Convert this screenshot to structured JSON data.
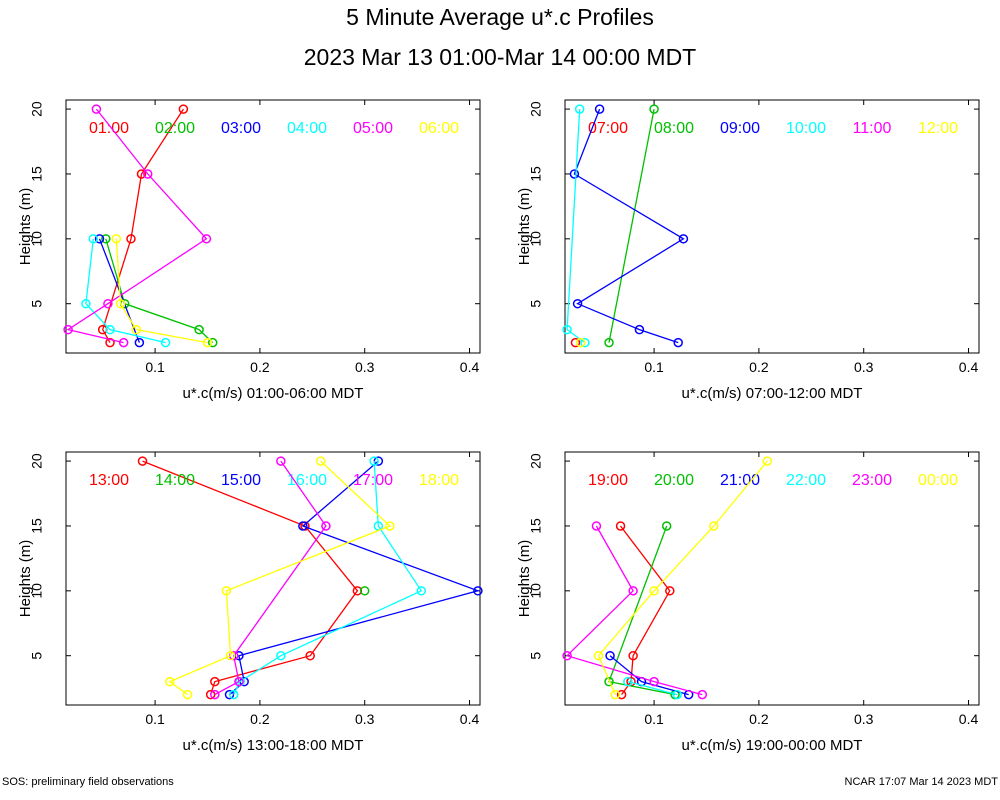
{
  "title": "5 Minute Average u*.c Profiles",
  "subtitle": "2023 Mar 13 01:00-Mar 14 00:00 MDT",
  "footer_left": "SOS: preliminary field observations",
  "footer_right": "NCAR 17:07 Mar 14 2023 MDT",
  "chart_data": [
    {
      "type": "scatter",
      "xlabel": "u*.c(m/s) 01:00-06:00 MDT",
      "ylabel": "Heights (m)",
      "xlim": [
        0.015,
        0.41
      ],
      "ylim": [
        1.2,
        20.7
      ],
      "xticks": [
        "0.1",
        "0.2",
        "0.3",
        "0.4"
      ],
      "yticks": [
        "5",
        "10",
        "15",
        "20"
      ],
      "series": [
        {
          "name": "01:00",
          "color": "#ff0000",
          "points": [
            [
              0.057,
              2
            ],
            [
              0.05,
              3
            ],
            [
              0.077,
              10
            ],
            [
              0.087,
              15
            ],
            [
              0.127,
              20
            ]
          ]
        },
        {
          "name": "02:00",
          "color": "#00c000",
          "points": [
            [
              0.155,
              2
            ],
            [
              0.142,
              3
            ],
            [
              0.071,
              5
            ],
            [
              0.053,
              10
            ]
          ]
        },
        {
          "name": "03:00",
          "color": "#0000ff",
          "points": [
            [
              0.085,
              2
            ],
            [
              0.047,
              10
            ]
          ]
        },
        {
          "name": "04:00",
          "color": "#00ffff",
          "points": [
            [
              0.11,
              2
            ],
            [
              0.057,
              3
            ],
            [
              0.034,
              5
            ],
            [
              0.041,
              10
            ]
          ]
        },
        {
          "name": "05:00",
          "color": "#ff00ff",
          "points": [
            [
              0.07,
              2
            ],
            [
              0.017,
              3
            ],
            [
              0.055,
              5
            ],
            [
              0.149,
              10
            ],
            [
              0.093,
              15
            ],
            [
              0.044,
              20
            ]
          ]
        },
        {
          "name": "06:00",
          "color": "#ffff00",
          "points": [
            [
              0.15,
              2
            ],
            [
              0.082,
              3
            ],
            [
              0.067,
              5
            ],
            [
              0.063,
              10
            ]
          ]
        }
      ]
    },
    {
      "type": "scatter",
      "xlabel": "u*.c(m/s) 07:00-12:00 MDT",
      "ylabel": "Heights (m)",
      "xlim": [
        0.015,
        0.41
      ],
      "ylim": [
        1.2,
        20.7
      ],
      "xticks": [
        "0.1",
        "0.2",
        "0.3",
        "0.4"
      ],
      "yticks": [
        "5",
        "10",
        "15",
        "20"
      ],
      "series": [
        {
          "name": "07:00",
          "color": "#ff0000",
          "points": [
            [
              0.025,
              2
            ]
          ]
        },
        {
          "name": "08:00",
          "color": "#00c000",
          "points": [
            [
              0.057,
              2
            ],
            [
              0.1,
              20
            ]
          ]
        },
        {
          "name": "09:00",
          "color": "#0000ff",
          "points": [
            [
              0.123,
              2
            ],
            [
              0.086,
              3
            ],
            [
              0.027,
              5
            ],
            [
              0.128,
              10
            ],
            [
              0.024,
              15
            ],
            [
              0.048,
              20
            ]
          ]
        },
        {
          "name": "10:00",
          "color": "#00ffff",
          "points": [
            [
              0.034,
              2
            ],
            [
              0.017,
              3
            ],
            [
              0.029,
              20
            ]
          ]
        },
        {
          "name": "11:00",
          "color": "#ff00ff",
          "points": []
        },
        {
          "name": "12:00",
          "color": "#ffff00",
          "points": [
            [
              0.03,
              2
            ]
          ]
        }
      ]
    },
    {
      "type": "scatter",
      "xlabel": "u*.c(m/s) 13:00-18:00 MDT",
      "ylabel": "Heights (m)",
      "xlim": [
        0.015,
        0.41
      ],
      "ylim": [
        1.2,
        20.7
      ],
      "xticks": [
        "0.1",
        "0.2",
        "0.3",
        "0.4"
      ],
      "yticks": [
        "5",
        "10",
        "15",
        "20"
      ],
      "series": [
        {
          "name": "13:00",
          "color": "#ff0000",
          "points": [
            [
              0.153,
              2
            ],
            [
              0.157,
              3
            ],
            [
              0.248,
              5
            ],
            [
              0.293,
              10
            ],
            [
              0.243,
              15
            ],
            [
              0.088,
              20
            ]
          ]
        },
        {
          "name": "14:00",
          "color": "#00c000",
          "points": [
            [
              0.3,
              10
            ]
          ]
        },
        {
          "name": "15:00",
          "color": "#0000ff",
          "points": [
            [
              0.171,
              2
            ],
            [
              0.185,
              3
            ],
            [
              0.18,
              5
            ],
            [
              0.408,
              10
            ],
            [
              0.241,
              15
            ],
            [
              0.313,
              20
            ]
          ]
        },
        {
          "name": "16:00",
          "color": "#00ffff",
          "points": [
            [
              0.175,
              2
            ],
            [
              0.181,
              3
            ],
            [
              0.22,
              5
            ],
            [
              0.354,
              10
            ],
            [
              0.313,
              15
            ],
            [
              0.309,
              20
            ]
          ]
        },
        {
          "name": "17:00",
          "color": "#ff00ff",
          "points": [
            [
              0.157,
              2
            ],
            [
              0.18,
              3
            ],
            [
              0.175,
              5
            ],
            [
              0.263,
              15
            ],
            [
              0.22,
              20
            ]
          ]
        },
        {
          "name": "18:00",
          "color": "#ffff00",
          "points": [
            [
              0.131,
              2
            ],
            [
              0.114,
              3
            ],
            [
              0.172,
              5
            ],
            [
              0.168,
              10
            ],
            [
              0.324,
              15
            ],
            [
              0.258,
              20
            ]
          ]
        }
      ]
    },
    {
      "type": "scatter",
      "xlabel": "u*.c(m/s) 19:00-00:00 MDT",
      "ylabel": "Heights (m)",
      "xlim": [
        0.015,
        0.41
      ],
      "ylim": [
        1.2,
        20.7
      ],
      "xticks": [
        "0.1",
        "0.2",
        "0.3",
        "0.4"
      ],
      "yticks": [
        "5",
        "10",
        "15",
        "20"
      ],
      "series": [
        {
          "name": "19:00",
          "color": "#ff0000",
          "points": [
            [
              0.069,
              2
            ],
            [
              0.078,
              3
            ],
            [
              0.08,
              5
            ],
            [
              0.115,
              10
            ],
            [
              0.068,
              15
            ]
          ]
        },
        {
          "name": "20:00",
          "color": "#00c000",
          "points": [
            [
              0.12,
              2
            ],
            [
              0.057,
              3
            ],
            [
              0.112,
              15
            ]
          ]
        },
        {
          "name": "21:00",
          "color": "#0000ff",
          "points": [
            [
              0.133,
              2
            ],
            [
              0.088,
              3
            ],
            [
              0.058,
              5
            ]
          ]
        },
        {
          "name": "22:00",
          "color": "#00ffff",
          "points": [
            [
              0.122,
              2
            ],
            [
              0.075,
              3
            ]
          ]
        },
        {
          "name": "23:00",
          "color": "#ff00ff",
          "points": [
            [
              0.146,
              2
            ],
            [
              0.1,
              3
            ],
            [
              0.017,
              5
            ],
            [
              0.08,
              10
            ],
            [
              0.045,
              15
            ]
          ]
        },
        {
          "name": "00:00",
          "color": "#ffff00",
          "points": [
            [
              0.063,
              2
            ],
            [
              0.047,
              5
            ],
            [
              0.1,
              10
            ],
            [
              0.157,
              15
            ],
            [
              0.208,
              20
            ]
          ]
        }
      ]
    }
  ]
}
